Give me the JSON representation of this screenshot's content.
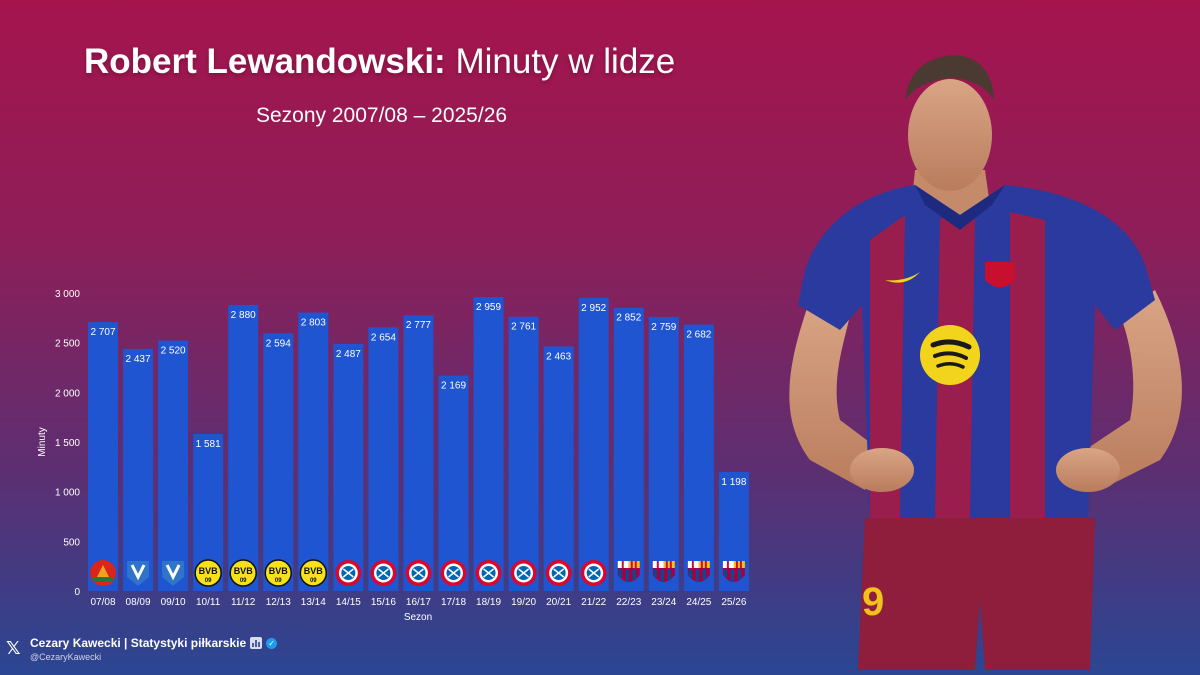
{
  "title": {
    "bold": "Robert Lewandowski:",
    "regular": "Minuty w lidze"
  },
  "subtitle": "Sezony 2007/08 – 2025/26",
  "chart_data": {
    "type": "bar",
    "categories": [
      "07/08",
      "08/09",
      "09/10",
      "10/11",
      "11/12",
      "12/13",
      "13/14",
      "14/15",
      "15/16",
      "16/17",
      "17/18",
      "18/19",
      "19/20",
      "20/21",
      "21/22",
      "22/23",
      "23/24",
      "24/25",
      "25/26"
    ],
    "values": [
      2707,
      2437,
      2520,
      1581,
      2880,
      2594,
      2803,
      2487,
      2654,
      2777,
      2169,
      2959,
      2761,
      2463,
      2952,
      2852,
      2759,
      2682,
      1198
    ],
    "value_labels": [
      "2 707",
      "2 437",
      "2 520",
      "1 581",
      "2 880",
      "2 594",
      "2 803",
      "2 487",
      "2 654",
      "2 777",
      "2 169",
      "2 959",
      "2 761",
      "2 463",
      "2 952",
      "2 852",
      "2 759",
      "2 682",
      "1 198"
    ],
    "clubs": [
      "Znicz Pruszków",
      "Lech Poznań",
      "Lech Poznań",
      "Borussia Dortmund",
      "Borussia Dortmund",
      "Borussia Dortmund",
      "Borussia Dortmund",
      "Bayern München",
      "Bayern München",
      "Bayern München",
      "Bayern München",
      "Bayern München",
      "Bayern München",
      "Bayern München",
      "Bayern München",
      "FC Barcelona",
      "FC Barcelona",
      "FC Barcelona",
      "FC Barcelona"
    ],
    "club_badges": [
      "znicz",
      "lech",
      "lech",
      "bvb",
      "bvb",
      "bvb",
      "bvb",
      "bayern",
      "bayern",
      "bayern",
      "bayern",
      "bayern",
      "bayern",
      "bayern",
      "bayern",
      "barca",
      "barca",
      "barca",
      "barca"
    ],
    "badge_text": {
      "bvb": "BVB",
      "bvb_year": "09"
    },
    "xlabel": "Sezon",
    "ylabel": "Minuty",
    "ylim": [
      0,
      3000
    ],
    "yticks": [
      0,
      500,
      1000,
      1500,
      2000,
      2500,
      3000
    ],
    "ytick_labels": [
      "0",
      "500",
      "1 000",
      "1 500",
      "2 000",
      "2 500",
      "3 000"
    ],
    "bar_color": "#1f55d1",
    "grid": false
  },
  "player": {
    "shirt_number": "9"
  },
  "credit": {
    "x_logo": "𝕏",
    "name": "Cezary Kawecki | Statystyki piłkarskie",
    "verified_mark": "✓",
    "handle": "@CezaryKawecki"
  }
}
